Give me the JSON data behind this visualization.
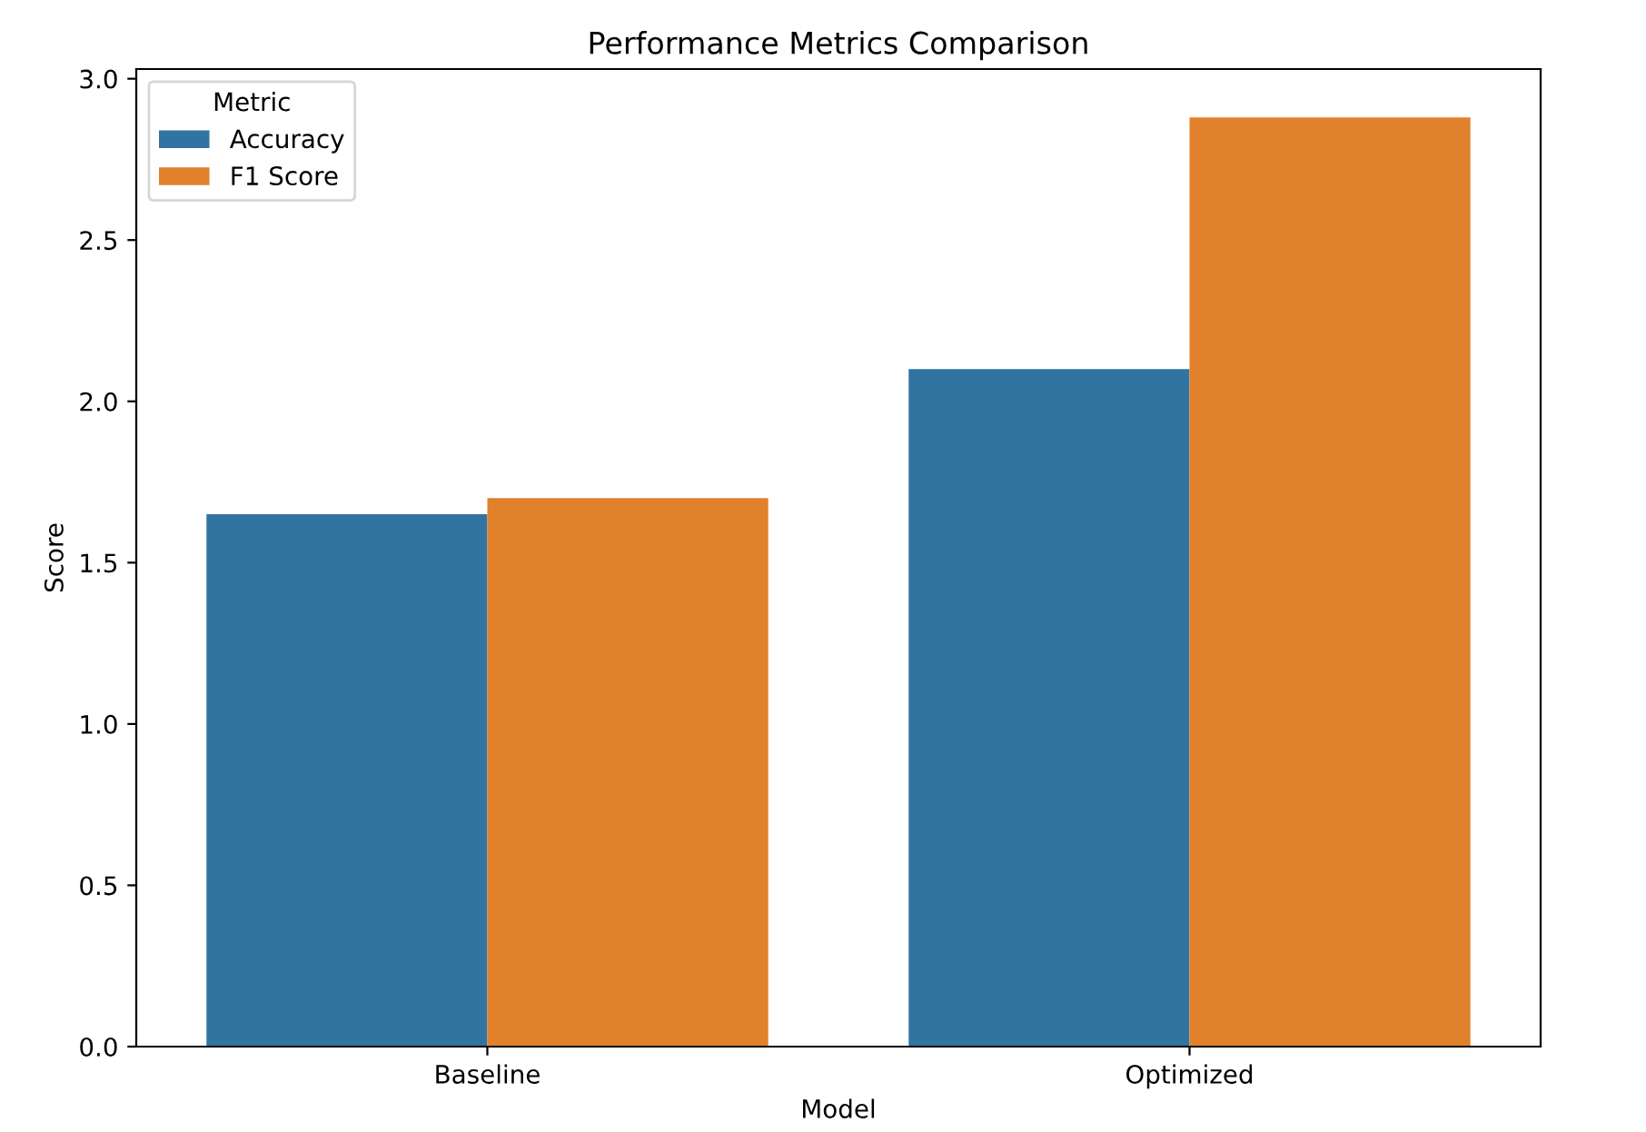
{
  "chart_data": {
    "type": "bar",
    "title": "Performance Metrics Comparison",
    "xlabel": "Model",
    "ylabel": "Score",
    "categories": [
      "Baseline",
      "Optimized"
    ],
    "series": [
      {
        "name": "Accuracy",
        "color": "#3274a1",
        "values": [
          1.65,
          2.1
        ]
      },
      {
        "name": "F1 Score",
        "color": "#e1812c",
        "values": [
          1.7,
          2.88
        ]
      }
    ],
    "ylim": [
      0,
      3.03
    ],
    "yticks": [
      {
        "value": 0,
        "label": "0.0"
      },
      {
        "value": 0.5,
        "label": "0.5"
      },
      {
        "value": 1,
        "label": "1.0"
      },
      {
        "value": 1.5,
        "label": "1.5"
      },
      {
        "value": 2,
        "label": "2.0"
      },
      {
        "value": 2.5,
        "label": "2.5"
      },
      {
        "value": 3,
        "label": "3.0"
      }
    ],
    "legend": "top left",
    "legend_title": "Metric",
    "grid": false
  }
}
